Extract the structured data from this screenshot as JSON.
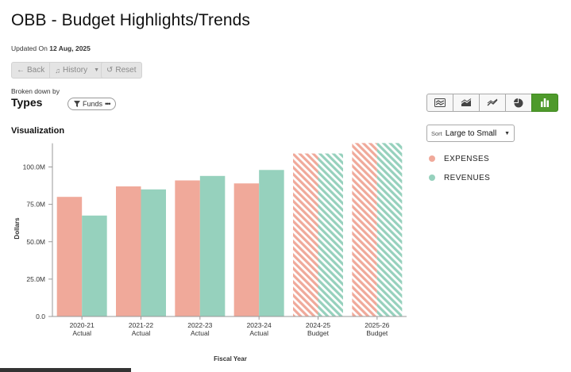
{
  "header": {
    "title": "OBB - Budget Highlights/Trends",
    "updated_prefix": "Updated On",
    "updated_date": "12 Aug, 2025"
  },
  "toolbar": {
    "back_label": "Back",
    "history_label": "History",
    "reset_label": "Reset"
  },
  "breakdown": {
    "caption": "Broken down by",
    "value": "Types",
    "filter_label": "Funds"
  },
  "visualization": {
    "title": "Visualization",
    "chart_type_buttons": [
      "stacked-area-icon",
      "area-icon",
      "line-icon",
      "pie-icon",
      "bar-icon"
    ],
    "active_chart_type": "bar-icon"
  },
  "sort": {
    "label": "Sort",
    "value": "Large to Small"
  },
  "colors": {
    "expenses": "#f0a99a",
    "revenues": "#96d1bd",
    "active_button": "#4e9a2b"
  },
  "chart_data": {
    "type": "bar",
    "xlabel": "Fiscal Year",
    "ylabel": "Dollars",
    "ylim": [
      0,
      118
    ],
    "yticks": [
      0,
      25,
      50,
      75,
      100
    ],
    "ytick_labels": [
      "0.0",
      "25.0M",
      "50.0M",
      "75.0M",
      "100.0M"
    ],
    "categories": [
      {
        "year": "2020-21",
        "kind": "Actual"
      },
      {
        "year": "2021-22",
        "kind": "Actual"
      },
      {
        "year": "2022-23",
        "kind": "Actual"
      },
      {
        "year": "2023-24",
        "kind": "Actual"
      },
      {
        "year": "2024-25",
        "kind": "Budget"
      },
      {
        "year": "2025-26",
        "kind": "Budget"
      }
    ],
    "series": [
      {
        "name": "EXPENSES",
        "values": [
          80,
          87,
          91,
          89,
          109,
          116
        ]
      },
      {
        "name": "REVENUES",
        "values": [
          67.5,
          85,
          94,
          98,
          109,
          116
        ]
      }
    ],
    "legend_position": "right",
    "hatched_kind": "Budget"
  }
}
